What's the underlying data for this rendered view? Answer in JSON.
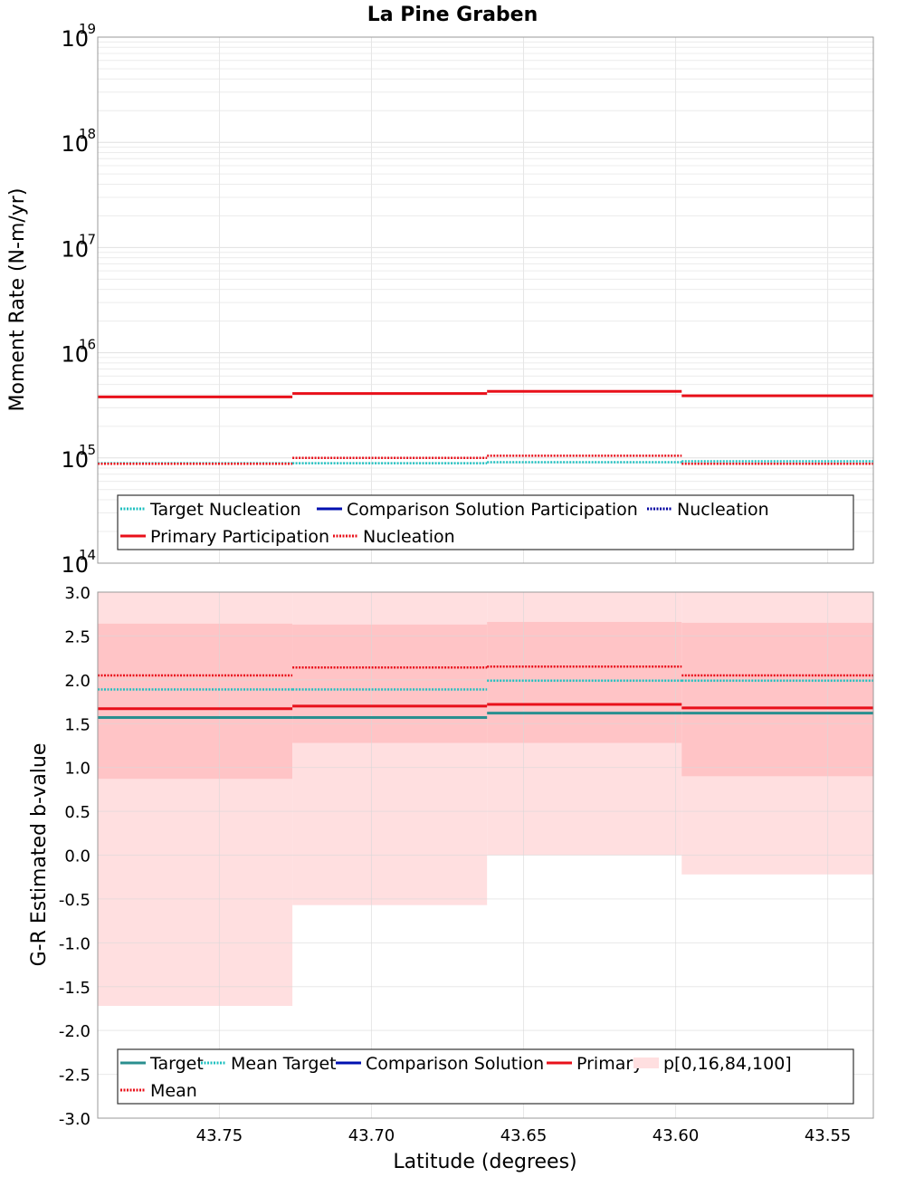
{
  "title": "La Pine Graben",
  "xlabel": "Latitude (degrees)",
  "colors": {
    "target": "#2a8f8f",
    "mean_target": "#20c0c0",
    "comparison": "#0010b0",
    "comparison_nucleation": "#0000a0",
    "primary": "#e8101a",
    "primary_nucleation": "#e8101a",
    "band_outer": "#ffdfe0",
    "band_inner": "#ffc4c6"
  },
  "chart_data": [
    {
      "type": "line",
      "ylabel": "Moment Rate (N-m/yr)",
      "yscale": "log",
      "ylim": [
        100000000000000.0,
        1e+19
      ],
      "y_ticks": [
        {
          "base": "10",
          "exp": "14"
        },
        {
          "base": "10",
          "exp": "15"
        },
        {
          "base": "10",
          "exp": "16"
        },
        {
          "base": "10",
          "exp": "17"
        },
        {
          "base": "10",
          "exp": "18"
        },
        {
          "base": "10",
          "exp": "19"
        }
      ],
      "xlim": [
        43.79,
        43.535
      ],
      "x_ticks": [
        "43.75",
        "43.70",
        "43.65",
        "43.60",
        "43.55"
      ],
      "bin_edges": [
        43.79,
        43.726,
        43.662,
        43.598,
        43.535
      ],
      "grid": true,
      "legend_position": "lower-center",
      "series": [
        {
          "key": "target_nucleation",
          "name": "Target Nucleation",
          "style": "dotted",
          "values": [
            890000000000000.0,
            890000000000000.0,
            910000000000000.0,
            930000000000000.0
          ]
        },
        {
          "key": "comparison_participation",
          "name": "Comparison Solution Participation",
          "style": "solid",
          "values": [
            null,
            null,
            null,
            null
          ]
        },
        {
          "key": "comparison_nucleation",
          "name": "Nucleation",
          "style": "dotted",
          "values": [
            null,
            null,
            null,
            null
          ]
        },
        {
          "key": "primary_participation",
          "name": "Primary Participation",
          "style": "solid",
          "values": [
            3800000000000000.0,
            4100000000000000.0,
            4300000000000000.0,
            3900000000000000.0
          ]
        },
        {
          "key": "primary_nucleation",
          "name": "Nucleation",
          "style": "dotted",
          "values": [
            880000000000000.0,
            1000000000000000.0,
            1050000000000000.0,
            880000000000000.0
          ]
        }
      ]
    },
    {
      "type": "line",
      "ylabel": "G-R Estimated b-value",
      "ylim": [
        -3.0,
        3.0
      ],
      "y_ticks": [
        "-3.0",
        "-2.5",
        "-2.0",
        "-1.5",
        "-1.0",
        "-0.5",
        "0.0",
        "0.5",
        "1.0",
        "1.5",
        "2.0",
        "2.5",
        "3.0"
      ],
      "xlim": [
        43.79,
        43.535
      ],
      "x_ticks": [
        "43.75",
        "43.70",
        "43.65",
        "43.60",
        "43.55"
      ],
      "bin_edges": [
        43.79,
        43.726,
        43.662,
        43.598,
        43.535
      ],
      "grid": true,
      "legend_position": "lower-center",
      "series": [
        {
          "key": "target",
          "name": "Target",
          "style": "solid",
          "values": [
            1.57,
            1.57,
            1.62,
            1.62
          ]
        },
        {
          "key": "mean_target",
          "name": "Mean Target",
          "style": "dotted",
          "values": [
            1.89,
            1.89,
            1.99,
            1.99
          ]
        },
        {
          "key": "comparison",
          "name": "Comparison Solution",
          "style": "solid",
          "values": [
            null,
            null,
            null,
            null
          ]
        },
        {
          "key": "primary",
          "name": "Primary",
          "style": "solid",
          "values": [
            1.67,
            1.7,
            1.72,
            1.68
          ]
        },
        {
          "key": "mean",
          "name": "Mean",
          "style": "dotted",
          "values": [
            2.05,
            2.14,
            2.15,
            2.05
          ]
        }
      ],
      "bands": {
        "name": "p[0,16,84,100]",
        "p0": [
          -1.72,
          -0.57,
          0.0,
          -0.22
        ],
        "p16": [
          0.87,
          1.28,
          1.28,
          0.9
        ],
        "p84": [
          2.64,
          2.63,
          2.66,
          2.65
        ],
        "p100": [
          3.0,
          3.0,
          3.0,
          3.0
        ]
      }
    }
  ]
}
